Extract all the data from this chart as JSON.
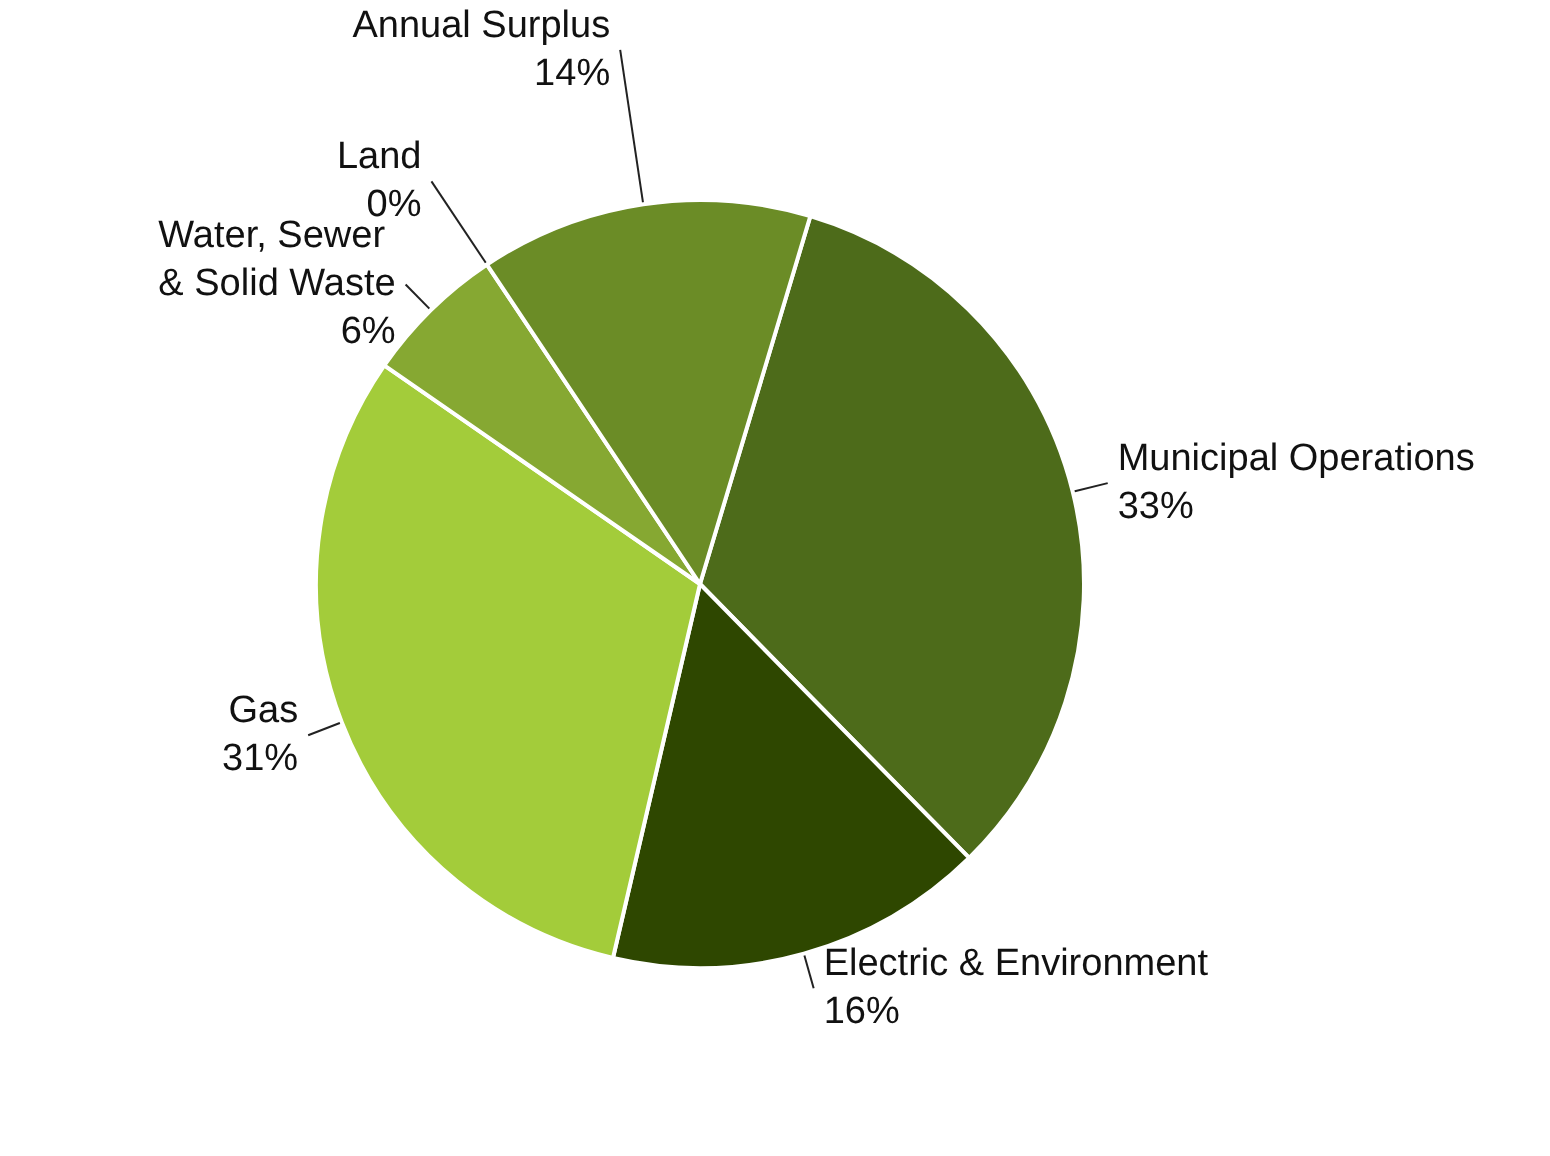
{
  "chart_data": {
    "type": "pie",
    "categories": [
      "Municipal Operations",
      "Electric & Environment",
      "Gas",
      "Water, Sewer & Solid Waste",
      "Land",
      "Annual Surplus"
    ],
    "values": [
      33,
      16,
      31,
      6,
      0,
      14
    ],
    "value_labels": [
      "33%",
      "16%",
      "31%",
      "6%",
      "0%",
      "14%"
    ],
    "colors": [
      "#4d6b1a",
      "#2e4700",
      "#a3cc3a",
      "#86a832",
      "#7a9a2c",
      "#6b8c26"
    ]
  }
}
